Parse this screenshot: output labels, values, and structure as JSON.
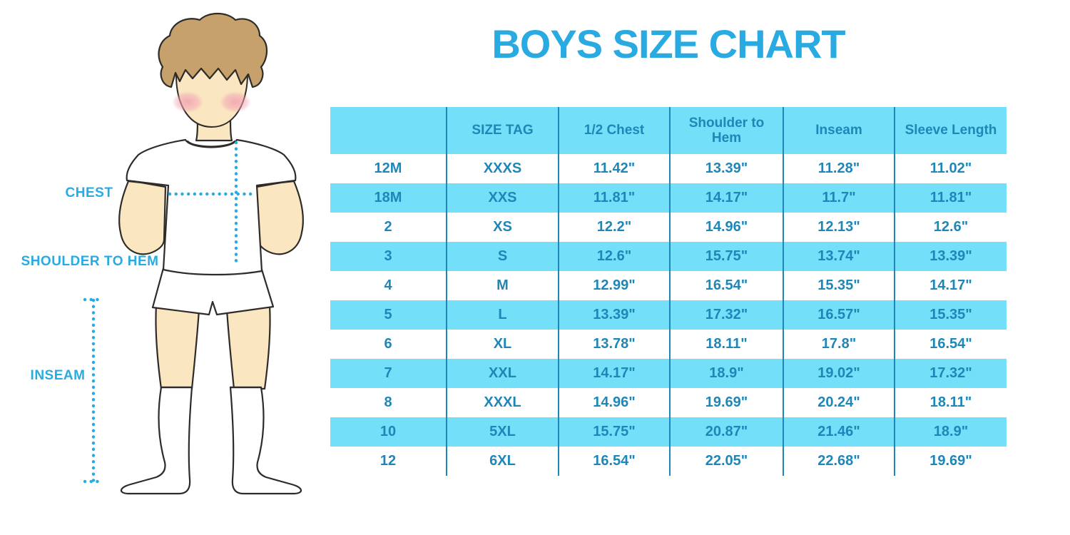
{
  "title": "BOYS SIZE CHART",
  "figure_labels": {
    "chest": "CHEST",
    "shoulder_to_hem": "SHOULDER TO HEM",
    "inseam": "INSEAM"
  },
  "chart_data": {
    "type": "table",
    "title": "BOYS SIZE CHART",
    "columns": [
      "",
      "SIZE TAG",
      "1/2 Chest",
      "Shoulder to Hem",
      "Inseam",
      "Sleeve Length"
    ],
    "rows": [
      [
        "12M",
        "XXXS",
        "11.42\"",
        "13.39\"",
        "11.28\"",
        "11.02\""
      ],
      [
        "18M",
        "XXS",
        "11.81\"",
        "14.17\"",
        "11.7\"",
        "11.81\""
      ],
      [
        "2",
        "XS",
        "12.2\"",
        "14.96\"",
        "12.13\"",
        "12.6\""
      ],
      [
        "3",
        "S",
        "12.6\"",
        "15.75\"",
        "13.74\"",
        "13.39\""
      ],
      [
        "4",
        "M",
        "12.99\"",
        "16.54\"",
        "15.35\"",
        "14.17\""
      ],
      [
        "5",
        "L",
        "13.39\"",
        "17.32\"",
        "16.57\"",
        "15.35\""
      ],
      [
        "6",
        "XL",
        "13.78\"",
        "18.11\"",
        "17.8\"",
        "16.54\""
      ],
      [
        "7",
        "XXL",
        "14.17\"",
        "18.9\"",
        "19.02\"",
        "17.32\""
      ],
      [
        "8",
        "XXXL",
        "14.96\"",
        "19.69\"",
        "20.24\"",
        "18.11\""
      ],
      [
        "10",
        "5XL",
        "15.75\"",
        "20.87\"",
        "21.46\"",
        "18.9\""
      ],
      [
        "12",
        "6XL",
        "16.54\"",
        "22.05\"",
        "22.68\"",
        "19.69\""
      ]
    ],
    "row_striping": "alternating white / light-blue, header light-blue",
    "legend_position": "none",
    "grid": "vertical column separators only"
  },
  "colors": {
    "accent_blue": "#29ABE2",
    "band_light_blue": "#74DFF8",
    "table_text_blue": "#1E87B8",
    "grid_line_blue": "#1E87B8",
    "hair_brown": "#C7A16B",
    "skin_tan": "#FAE6C1",
    "blush_pink": "#F2A0B2",
    "outline_dark": "#2E2B28"
  }
}
